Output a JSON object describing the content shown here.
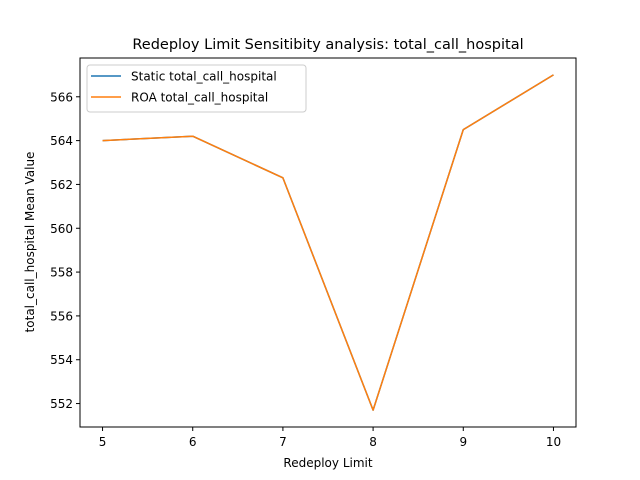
{
  "chart_data": {
    "type": "line",
    "title": "Redeploy Limit Sensitibity analysis: total_call_hospital",
    "xlabel": "Redeploy Limit",
    "ylabel": "total_call_hospital Mean Value",
    "x": [
      5,
      6,
      7,
      8,
      9,
      10
    ],
    "xlim": [
      4.75,
      10.25
    ],
    "ylim": [
      550.93,
      567.77
    ],
    "xticks": [
      5,
      6,
      7,
      8,
      9,
      10
    ],
    "yticks": [
      552,
      554,
      556,
      558,
      560,
      562,
      564,
      566
    ],
    "grid": false,
    "legend_position": "top-left",
    "series": [
      {
        "name": "Static total_call_hospital",
        "color": "#1f77b4",
        "values": [
          564.0,
          564.2,
          562.3,
          551.7,
          564.5,
          567.0
        ]
      },
      {
        "name": "ROA total_call_hospital",
        "color": "#ff7f0e",
        "values": [
          564.0,
          564.2,
          562.3,
          551.7,
          564.5,
          567.0
        ]
      }
    ]
  }
}
